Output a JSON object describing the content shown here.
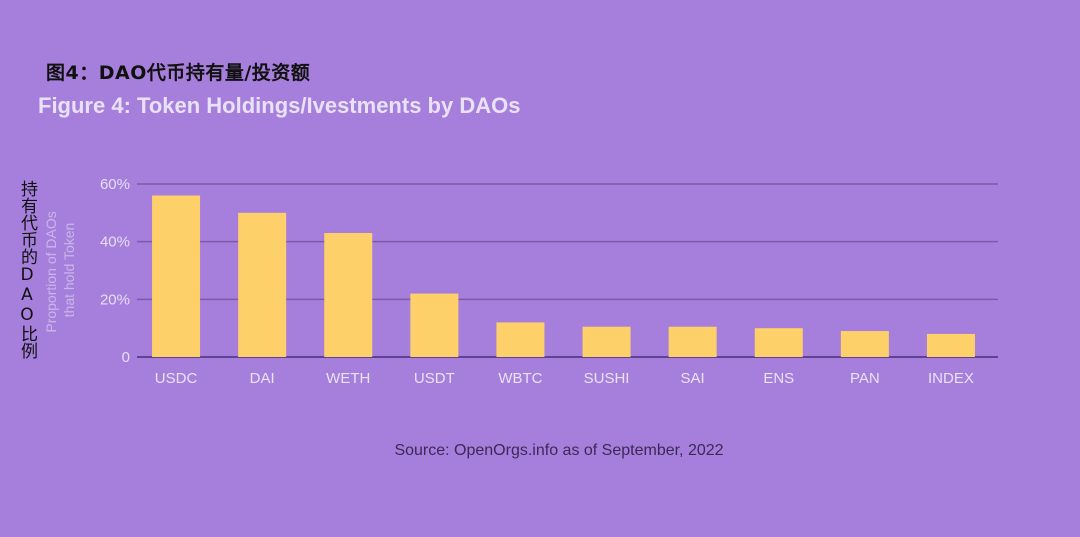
{
  "title_cn": "图4：DAO代币持有量/投资额",
  "title_en": "Figure 4: Token Holdings/Ivestments by DAOs",
  "ylabel_cn": "持有代币的DAO比例",
  "source": "Source: OpenOrgs.info as of September, 2022",
  "chart_data": {
    "type": "bar",
    "categories": [
      "USDC",
      "DAI",
      "WETH",
      "USDT",
      "WBTC",
      "SUSHI",
      "SAI",
      "ENS",
      "PAN",
      "INDEX"
    ],
    "values": [
      56,
      50,
      43,
      22,
      12,
      10.5,
      10.5,
      10,
      9,
      8
    ],
    "ylabel_lines": [
      "Proportion of DAOs",
      "that hold Token"
    ],
    "ylim": [
      0,
      60
    ],
    "yticks": [
      0,
      20,
      40,
      60
    ],
    "ytick_labels": [
      "0",
      "20%",
      "40%",
      "60%"
    ],
    "grid": true,
    "colors": {
      "bar": "#fdd06a",
      "grid": "#7c5aa8",
      "baseline": "#5e4390"
    }
  }
}
